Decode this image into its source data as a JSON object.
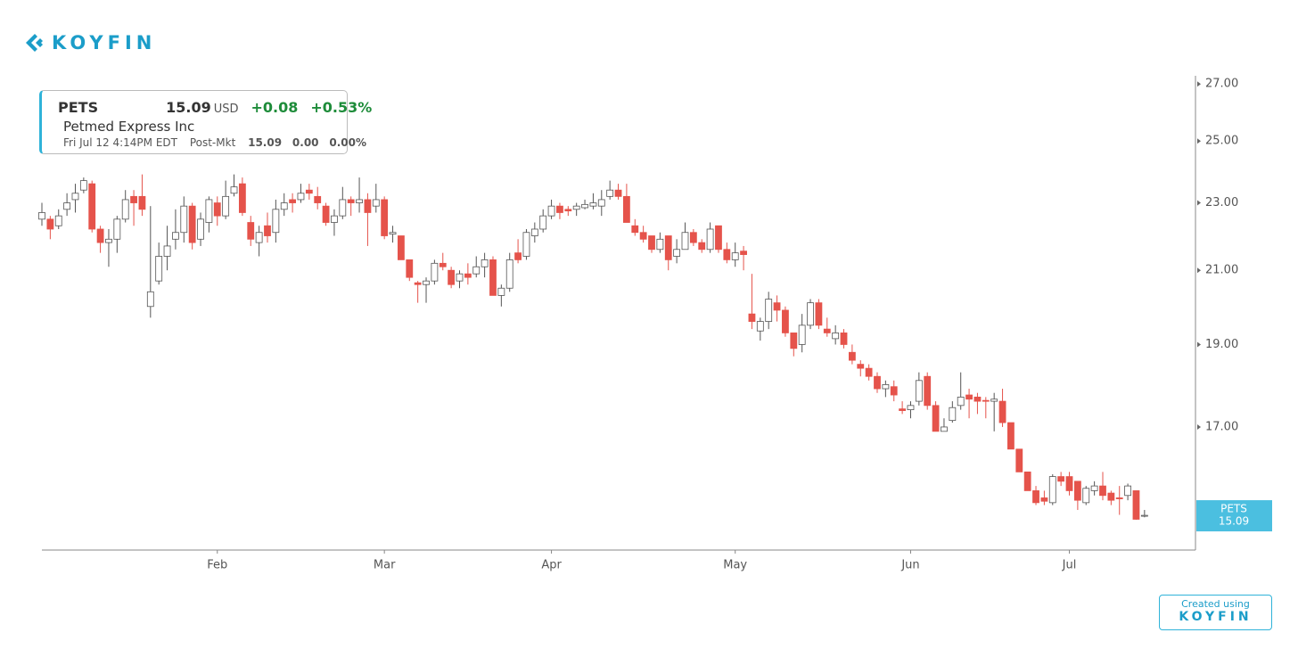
{
  "header": {
    "logo": "KOYFIN"
  },
  "quote": {
    "symbol": "PETS",
    "price": "15.09",
    "currency": "USD",
    "change": "+0.08",
    "change_pct": "+0.53%",
    "name": "Petmed Express Inc",
    "timestamp": "Fri Jul 12 4:14PM EDT",
    "session": "Post-Mkt",
    "post_price": "15.09",
    "post_change": "0.00",
    "post_change_pct": "0.00%"
  },
  "footer": {
    "line1": "Created using",
    "line2": "KOYFIN"
  },
  "chart_data": {
    "type": "candlestick",
    "log_scale": true,
    "up_color": "#ffffff",
    "down_color": "#e5534b",
    "ylim": [
      14.4,
      27.3
    ],
    "yticks": [
      {
        "value": 17,
        "label": "17.00"
      },
      {
        "value": 19,
        "label": "19.00"
      },
      {
        "value": 21,
        "label": "21.00"
      },
      {
        "value": 23,
        "label": "23.00"
      },
      {
        "value": 25,
        "label": "25.00"
      },
      {
        "value": 27,
        "label": "27.00"
      }
    ],
    "last_price": {
      "label": "PETS",
      "value": 15.09
    },
    "categories": [
      null,
      null,
      null,
      null,
      null,
      null,
      null,
      null,
      null,
      null,
      null,
      null,
      null,
      null,
      null,
      null,
      null,
      null,
      null,
      null,
      null,
      "Feb",
      null,
      null,
      null,
      null,
      null,
      null,
      null,
      null,
      null,
      null,
      null,
      null,
      null,
      null,
      null,
      null,
      null,
      null,
      null,
      "Mar",
      null,
      null,
      null,
      null,
      null,
      null,
      null,
      null,
      null,
      null,
      null,
      null,
      null,
      null,
      null,
      null,
      null,
      null,
      null,
      "Apr",
      null,
      null,
      null,
      null,
      null,
      null,
      null,
      null,
      null,
      null,
      null,
      null,
      null,
      null,
      null,
      null,
      null,
      null,
      null,
      null,
      null,
      "May",
      null,
      null,
      null,
      null,
      null,
      null,
      null,
      null,
      null,
      null,
      null,
      null,
      null,
      null,
      null,
      null,
      null,
      null,
      null,
      null,
      "Jun",
      null,
      null,
      null,
      null,
      null,
      null,
      null,
      null,
      null,
      null,
      null,
      null,
      null,
      null,
      null,
      null,
      null,
      null,
      "Jul",
      null,
      null,
      null,
      null,
      null,
      null,
      null,
      null,
      null
    ],
    "open": [
      22.5,
      22.5,
      22.3,
      22.8,
      23.1,
      23.4,
      23.6,
      22.2,
      21.8,
      21.9,
      22.5,
      23.2,
      23.2,
      20.0,
      20.7,
      21.4,
      21.9,
      22.1,
      22.9,
      21.9,
      22.4,
      23.0,
      22.6,
      23.3,
      23.6,
      22.4,
      21.8,
      22.3,
      22.1,
      22.8,
      23.1,
      23.1,
      23.4,
      23.2,
      22.9,
      22.4,
      22.6,
      23.1,
      23.0,
      23.1,
      22.9,
      23.1,
      22.05,
      22.0,
      21.3,
      20.65,
      20.6,
      20.7,
      21.2,
      21.0,
      20.7,
      20.9,
      20.9,
      21.1,
      21.3,
      20.3,
      20.5,
      21.5,
      21.4,
      22.0,
      22.2,
      22.6,
      22.9,
      22.8,
      22.8,
      22.85,
      22.9,
      22.9,
      23.2,
      23.4,
      23.2,
      22.3,
      22.1,
      22.0,
      21.6,
      22.0,
      21.4,
      21.6,
      22.1,
      21.8,
      21.6,
      22.3,
      21.6,
      21.3,
      21.55,
      19.8,
      19.35,
      19.6,
      20.1,
      19.9,
      19.3,
      19.0,
      19.5,
      20.1,
      19.4,
      19.15,
      19.3,
      18.8,
      18.5,
      18.4,
      18.2,
      17.9,
      17.95,
      17.42,
      17.4,
      17.6,
      18.2,
      17.5,
      16.9,
      17.15,
      17.5,
      17.75,
      17.7,
      17.62,
      17.6,
      17.6,
      17.1,
      16.5,
      16.0,
      15.6,
      15.45,
      15.35,
      15.9,
      15.9,
      15.8,
      15.35,
      15.6,
      15.7,
      15.55,
      15.45,
      15.5,
      15.6,
      15.09
    ],
    "high": [
      23.0,
      22.6,
      22.8,
      23.3,
      23.6,
      23.8,
      23.7,
      22.3,
      22.2,
      22.6,
      23.4,
      23.4,
      23.9,
      22.9,
      21.8,
      22.3,
      22.8,
      23.2,
      23.0,
      22.7,
      23.2,
      23.2,
      23.7,
      23.9,
      23.8,
      22.6,
      22.3,
      22.7,
      23.1,
      23.3,
      23.3,
      23.6,
      23.6,
      23.5,
      23.0,
      22.8,
      23.5,
      23.2,
      23.8,
      23.3,
      23.6,
      23.2,
      22.3,
      22.0,
      21.3,
      20.7,
      20.8,
      21.3,
      21.5,
      21.1,
      21.0,
      21.2,
      21.4,
      21.5,
      21.4,
      20.6,
      21.5,
      21.9,
      22.2,
      22.4,
      22.8,
      23.1,
      23.0,
      22.9,
      23.0,
      23.1,
      23.3,
      23.4,
      23.7,
      23.6,
      23.6,
      22.5,
      22.3,
      22.0,
      22.1,
      22.0,
      21.9,
      22.4,
      22.2,
      21.9,
      22.4,
      22.3,
      21.8,
      21.8,
      21.7,
      20.9,
      19.7,
      20.4,
      20.3,
      20.0,
      19.3,
      19.8,
      20.2,
      20.2,
      19.7,
      19.5,
      19.4,
      19.0,
      18.6,
      18.5,
      18.3,
      18.1,
      18.1,
      17.6,
      17.6,
      18.3,
      18.3,
      17.6,
      17.2,
      17.6,
      18.3,
      17.9,
      17.8,
      17.7,
      17.8,
      17.9,
      17.1,
      16.5,
      16.0,
      15.7,
      15.6,
      15.95,
      16.0,
      16.0,
      15.8,
      15.7,
      15.8,
      16.0,
      15.6,
      15.7,
      15.75,
      15.6,
      15.2
    ],
    "low": [
      22.3,
      21.9,
      22.2,
      22.6,
      22.7,
      23.3,
      22.1,
      21.5,
      21.1,
      21.5,
      22.4,
      22.3,
      22.6,
      19.7,
      20.6,
      21.0,
      21.6,
      21.8,
      21.6,
      21.7,
      22.1,
      22.3,
      22.5,
      23.2,
      22.6,
      21.7,
      21.4,
      21.8,
      21.8,
      22.6,
      22.7,
      23.0,
      23.1,
      22.8,
      22.3,
      22.0,
      22.5,
      22.6,
      22.7,
      21.7,
      22.7,
      21.9,
      21.8,
      21.3,
      20.7,
      20.1,
      20.1,
      20.6,
      21.0,
      20.5,
      20.5,
      20.6,
      20.8,
      20.8,
      20.3,
      20.0,
      20.4,
      21.2,
      21.3,
      21.8,
      22.1,
      22.5,
      22.5,
      22.6,
      22.6,
      22.8,
      22.8,
      22.6,
      23.1,
      23.1,
      22.4,
      22.0,
      21.8,
      21.5,
      21.5,
      21.0,
      21.2,
      21.6,
      21.7,
      21.5,
      21.5,
      21.5,
      21.2,
      21.1,
      21.0,
      19.4,
      19.1,
      19.4,
      19.6,
      19.2,
      18.7,
      18.8,
      19.4,
      19.4,
      19.2,
      19.0,
      18.9,
      18.5,
      18.2,
      18.1,
      17.8,
      17.7,
      17.6,
      17.3,
      17.2,
      17.5,
      17.4,
      16.9,
      16.9,
      17.1,
      17.4,
      17.2,
      17.3,
      17.2,
      16.9,
      17.0,
      16.5,
      16.0,
      15.6,
      15.3,
      15.3,
      15.3,
      15.7,
      15.5,
      15.2,
      15.3,
      15.5,
      15.4,
      15.3,
      15.1,
      15.4,
      15.0,
      15.05
    ],
    "close": [
      22.7,
      22.2,
      22.6,
      23.0,
      23.3,
      23.7,
      22.2,
      21.8,
      21.9,
      22.5,
      23.1,
      23.0,
      22.8,
      20.4,
      21.4,
      21.7,
      22.1,
      22.9,
      21.8,
      22.5,
      23.1,
      22.6,
      23.2,
      23.5,
      22.7,
      21.9,
      22.1,
      22.0,
      22.8,
      23.0,
      23.0,
      23.3,
      23.3,
      23.0,
      22.4,
      22.6,
      23.1,
      23.0,
      23.1,
      22.7,
      23.1,
      22.0,
      22.1,
      21.3,
      20.8,
      20.6,
      20.7,
      21.2,
      21.1,
      20.6,
      20.9,
      20.8,
      21.1,
      21.3,
      20.3,
      20.5,
      21.3,
      21.3,
      22.1,
      22.2,
      22.6,
      22.9,
      22.7,
      22.75,
      22.9,
      22.95,
      23.0,
      23.1,
      23.4,
      23.2,
      22.4,
      22.1,
      21.9,
      21.6,
      21.9,
      21.3,
      21.6,
      22.1,
      21.8,
      21.6,
      22.2,
      21.6,
      21.3,
      21.5,
      21.45,
      19.6,
      19.6,
      20.2,
      19.9,
      19.3,
      18.9,
      19.5,
      20.1,
      19.5,
      19.3,
      19.3,
      19.0,
      18.6,
      18.4,
      18.2,
      17.9,
      18.0,
      17.75,
      17.38,
      17.5,
      18.1,
      17.5,
      16.9,
      17.0,
      17.45,
      17.7,
      17.65,
      17.6,
      17.6,
      17.65,
      17.1,
      16.5,
      16.0,
      15.6,
      15.35,
      15.38,
      15.9,
      15.8,
      15.6,
      15.4,
      15.65,
      15.7,
      15.5,
      15.4,
      15.43,
      15.7,
      15.01,
      15.09
    ]
  }
}
